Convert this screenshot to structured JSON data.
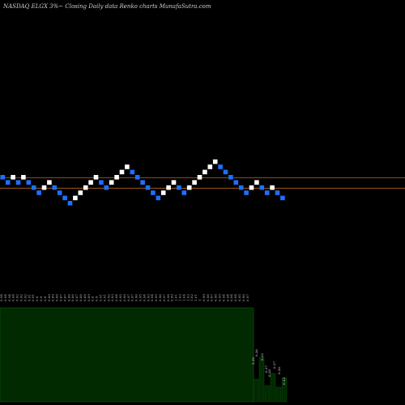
{
  "header": {
    "title": "NASDAQ ELGX  3%~  Closing Daily data  Renko  charts MunafaSutra.com"
  },
  "colors": {
    "background": "#000000",
    "up_brick": "#ffffff",
    "down_brick": "#1e6fff",
    "reference_line": "#b5651d",
    "volume_fill": "#012a01",
    "volume_edge": "#0a5a0a"
  },
  "chart_data": {
    "type": "renko",
    "title": "NASDAQ ELGX  3%~  Closing Daily data  Renko  charts MunafaSutra.com",
    "bricks": [
      {
        "dir": "down",
        "level": 0
      },
      {
        "dir": "down",
        "level": -1
      },
      {
        "dir": "up",
        "level": 0
      },
      {
        "dir": "down",
        "level": -1
      },
      {
        "dir": "up",
        "level": 0
      },
      {
        "dir": "down",
        "level": -1
      },
      {
        "dir": "down",
        "level": -2
      },
      {
        "dir": "down",
        "level": -3
      },
      {
        "dir": "up",
        "level": -2
      },
      {
        "dir": "up",
        "level": -1
      },
      {
        "dir": "down",
        "level": -2
      },
      {
        "dir": "down",
        "level": -3
      },
      {
        "dir": "down",
        "level": -4
      },
      {
        "dir": "down",
        "level": -5
      },
      {
        "dir": "up",
        "level": -4
      },
      {
        "dir": "up",
        "level": -3
      },
      {
        "dir": "up",
        "level": -2
      },
      {
        "dir": "up",
        "level": -1
      },
      {
        "dir": "up",
        "level": 0
      },
      {
        "dir": "down",
        "level": -1
      },
      {
        "dir": "down",
        "level": -2
      },
      {
        "dir": "up",
        "level": -1
      },
      {
        "dir": "up",
        "level": 0
      },
      {
        "dir": "up",
        "level": 1
      },
      {
        "dir": "up",
        "level": 2
      },
      {
        "dir": "down",
        "level": 1
      },
      {
        "dir": "down",
        "level": 0
      },
      {
        "dir": "down",
        "level": -1
      },
      {
        "dir": "down",
        "level": -2
      },
      {
        "dir": "down",
        "level": -3
      },
      {
        "dir": "down",
        "level": -4
      },
      {
        "dir": "up",
        "level": -3
      },
      {
        "dir": "up",
        "level": -2
      },
      {
        "dir": "up",
        "level": -1
      },
      {
        "dir": "down",
        "level": -2
      },
      {
        "dir": "down",
        "level": -3
      },
      {
        "dir": "up",
        "level": -2
      },
      {
        "dir": "up",
        "level": -1
      },
      {
        "dir": "up",
        "level": 0
      },
      {
        "dir": "up",
        "level": 1
      },
      {
        "dir": "up",
        "level": 2
      },
      {
        "dir": "up",
        "level": 3
      },
      {
        "dir": "down",
        "level": 2
      },
      {
        "dir": "down",
        "level": 1
      },
      {
        "dir": "down",
        "level": 0
      },
      {
        "dir": "down",
        "level": -1
      },
      {
        "dir": "down",
        "level": -2
      },
      {
        "dir": "down",
        "level": -3
      },
      {
        "dir": "up",
        "level": -2
      },
      {
        "dir": "up",
        "level": -1
      },
      {
        "dir": "down",
        "level": -2
      },
      {
        "dir": "down",
        "level": -3
      },
      {
        "dir": "up",
        "level": -2
      },
      {
        "dir": "down",
        "level": -3
      },
      {
        "dir": "down",
        "level": -4
      }
    ],
    "reference_lines": [
      0,
      -2
    ],
    "top_tick_labels": [
      "0.94",
      "0.94",
      "0.94",
      "0.94",
      "0.92",
      "0.92",
      "0.92",
      "0.91",
      "0.91",
      "0.9",
      "0.9",
      "0.9",
      "0.89",
      "0.89",
      "0.88",
      "0.87",
      "0.87",
      "0.86",
      "0.86",
      "0.87",
      "0.88",
      "0.88",
      "0.89",
      "0.9",
      "0.9",
      "0.91",
      "0.91",
      "0.92",
      "0.93",
      "0.94",
      "0.95",
      "0.96",
      "0.97",
      "0.97",
      "0.96",
      "0.95",
      "0.94",
      "0.93",
      "0.94",
      "0.95",
      "0.96",
      "0.97",
      "0.98",
      "0.99",
      "1.01",
      "1.03",
      "1.04",
      "1.03",
      "1.02",
      "1.01",
      "1",
      "0.99",
      "0.98",
      "0.97",
      "0.96",
      "0.95",
      "0.94",
      "0.94",
      "0.94",
      "0.94",
      "0.95",
      "0.96",
      "0.97"
    ],
    "volume_labels": [
      {
        "text": "0.39",
        "level": 0.3
      },
      {
        "text": "0.36",
        "level": 0.4
      },
      {
        "text": "0.32",
        "level": 0.35
      },
      {
        "text": "0.27",
        "level": 0.2
      },
      {
        "text": "0.28",
        "level": 0.15
      },
      {
        "text": "0.27",
        "level": 0.25
      },
      {
        "text": "0.28",
        "level": 0.18
      },
      {
        "text": "0.22",
        "level": 0.05
      }
    ]
  }
}
